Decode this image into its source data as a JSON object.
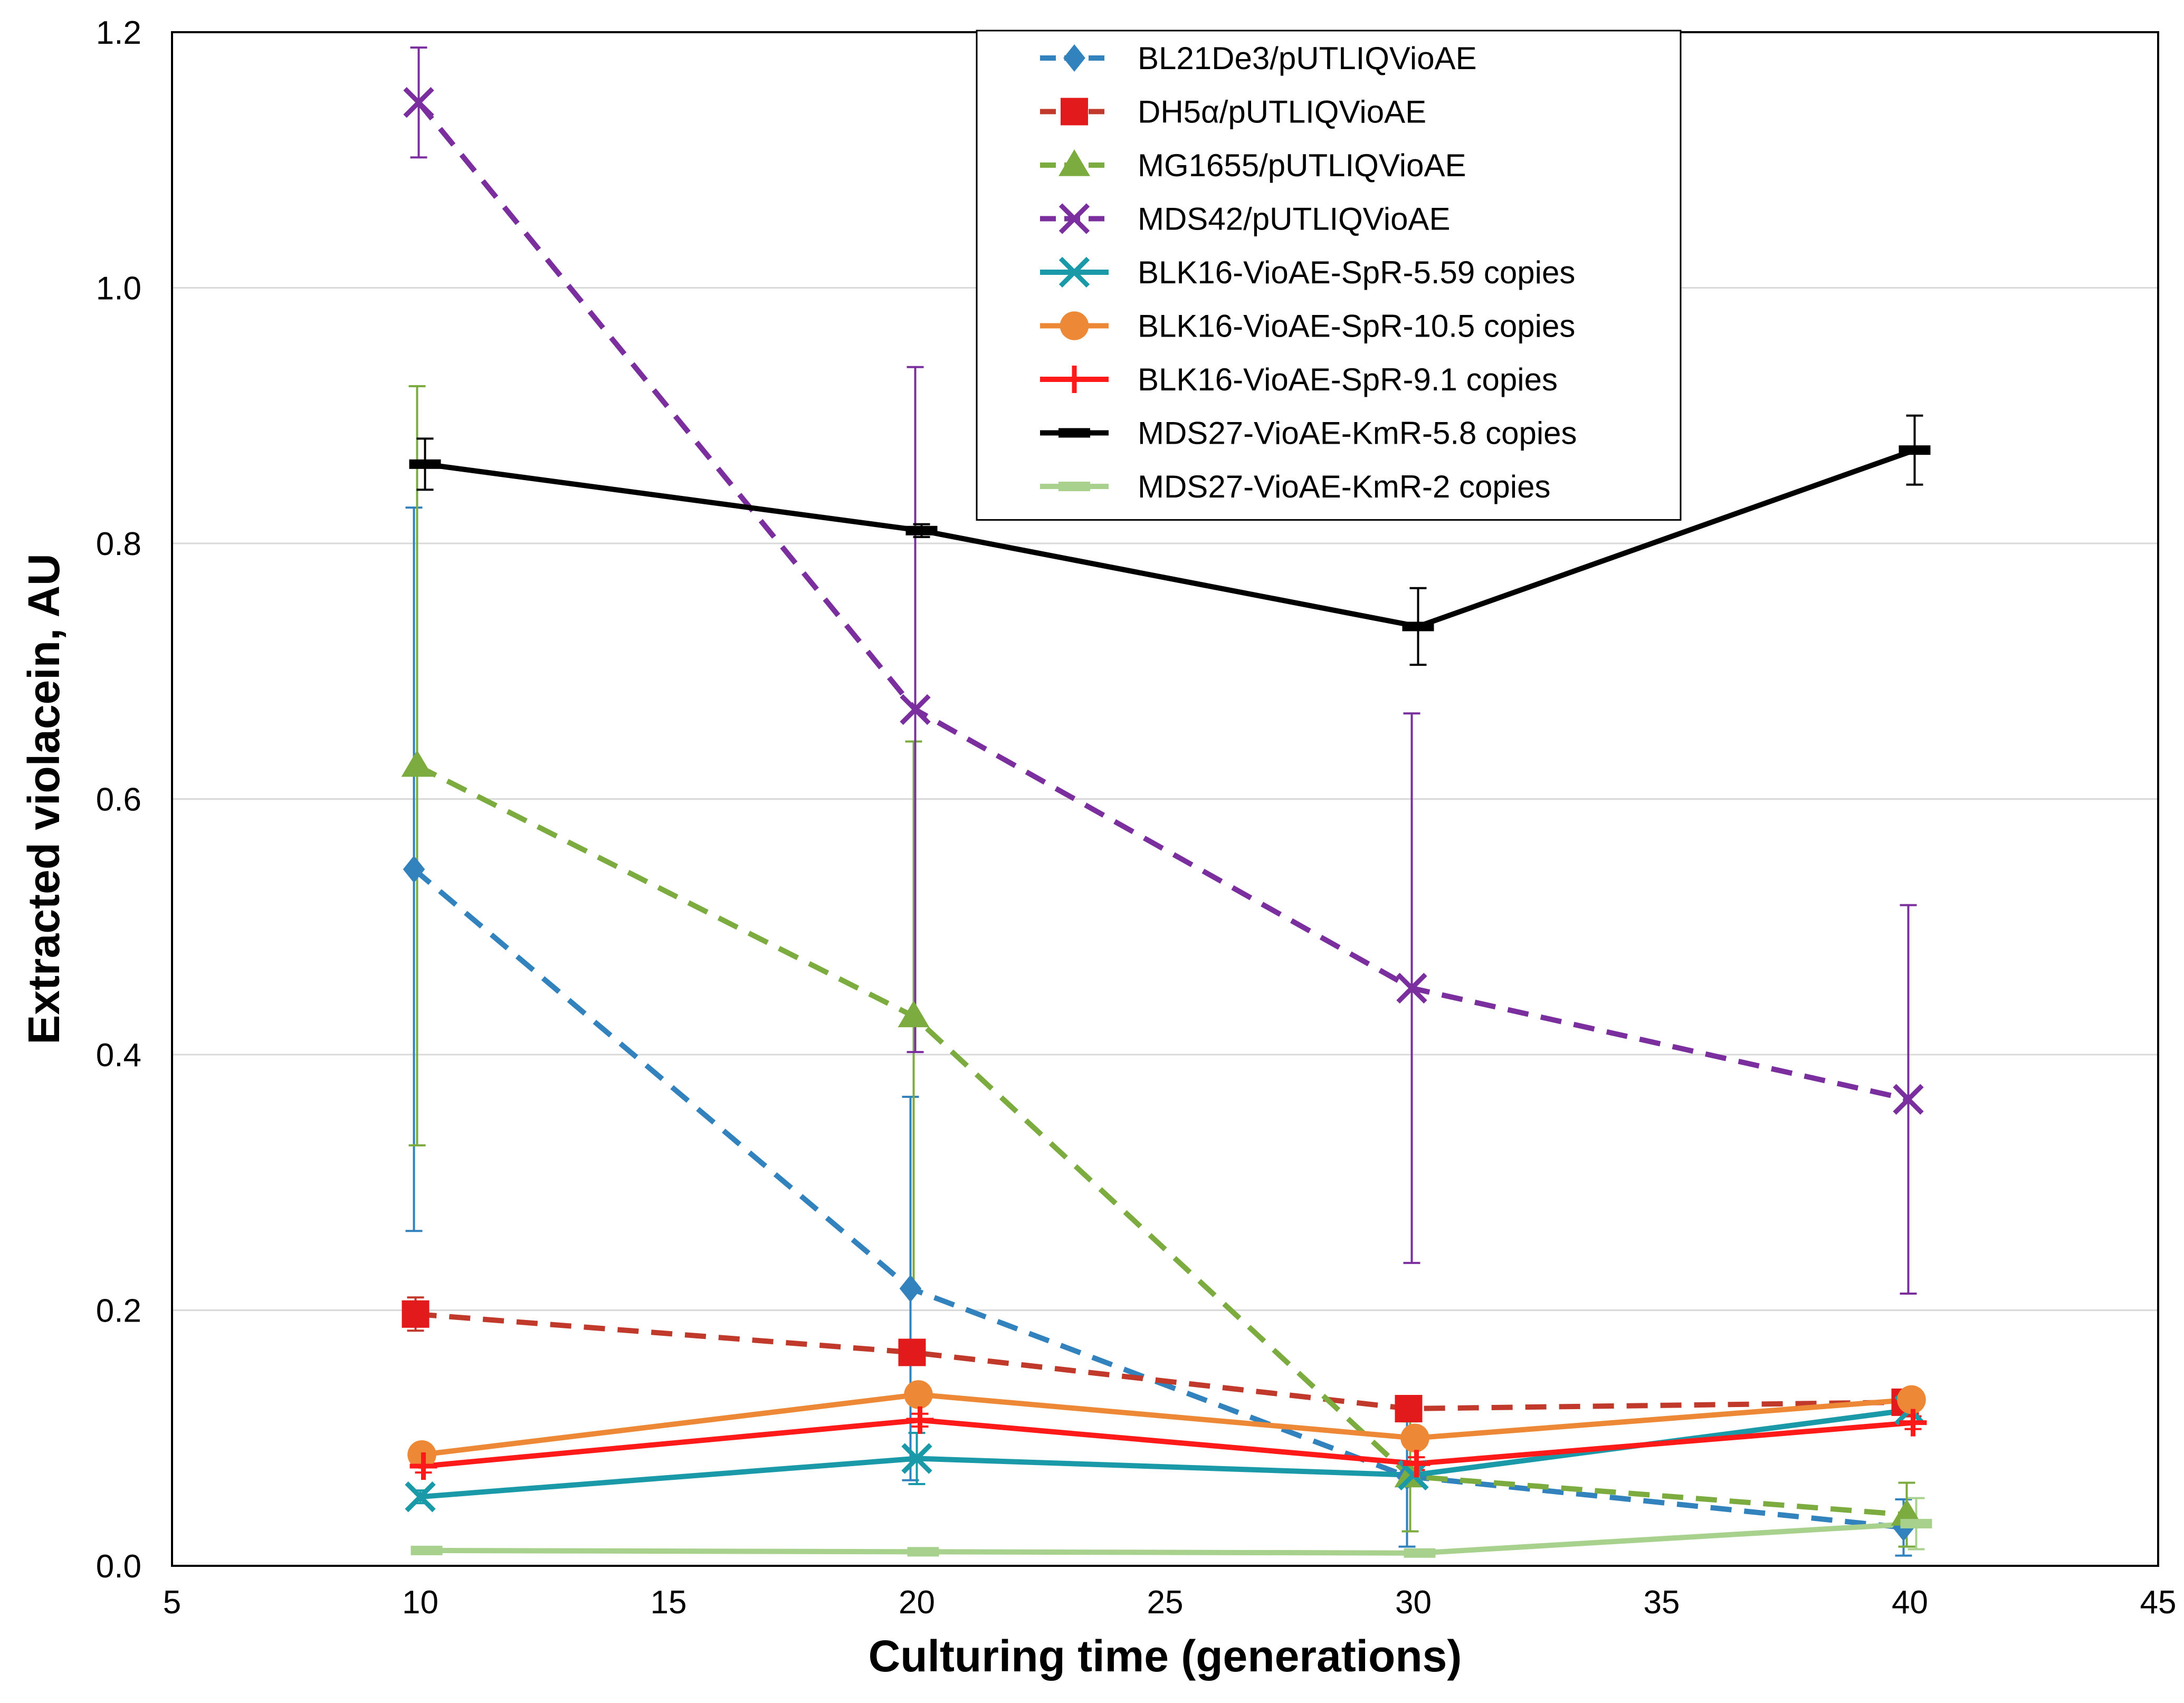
{
  "chart_data": {
    "type": "line",
    "title": "",
    "xlabel": "Culturing time (generations)",
    "ylabel": "Extracted violacein, AU",
    "xlim": [
      5,
      45
    ],
    "ylim": [
      0,
      1.2
    ],
    "xticks": [
      5,
      10,
      15,
      20,
      25,
      30,
      35,
      40,
      45
    ],
    "yticks": [
      0,
      0.2,
      0.4,
      0.6,
      0.8,
      1.0,
      1.2
    ],
    "xtick_labels": [
      "5",
      "10",
      "15",
      "20",
      "25",
      "30",
      "35",
      "40",
      "45"
    ],
    "ytick_labels": [
      "0.0",
      "0.2",
      "0.4",
      "0.6",
      "0.8",
      "1.0",
      "1.2"
    ],
    "grid": "horizontal",
    "legend_position": "top-center",
    "series": [
      {
        "name": "BL21De3/pUTLIQVioAE",
        "color": "#3182BD",
        "dash": true,
        "marker": "diamond",
        "x": [
          10,
          20,
          30,
          40
        ],
        "y": [
          0.545,
          0.217,
          0.07,
          0.03
        ],
        "err": [
          0.283,
          0.15,
          0.055,
          0.022
        ]
      },
      {
        "name": "DH5α/pUTLIQVioAE",
        "color": "#C0392B",
        "marker_color": "#E31A1C",
        "dash": true,
        "marker": "square",
        "x": [
          10,
          20,
          30,
          40
        ],
        "y": [
          0.197,
          0.167,
          0.123,
          0.128
        ],
        "err": [
          0.013,
          0.005,
          0.005,
          0.005
        ]
      },
      {
        "name": "MG1655/pUTLIQVioAE",
        "color": "#7CAC3F",
        "dash": true,
        "marker": "triangle",
        "x": [
          10,
          20,
          30,
          40
        ],
        "y": [
          0.626,
          0.43,
          0.07,
          0.04
        ],
        "err": [
          0.297,
          0.215,
          0.043,
          0.025
        ]
      },
      {
        "name": "MDS42/pUTLIQVioAE",
        "color": "#7B2F9E",
        "dash": true,
        "marker": "x",
        "x": [
          10,
          20,
          30,
          40
        ],
        "y": [
          1.145,
          0.67,
          0.452,
          0.365
        ],
        "err": [
          0.043,
          0.268,
          0.215,
          0.152
        ]
      },
      {
        "name": "BLK16-VioAE-SpR-5.59 copies",
        "color": "#1A9AA8",
        "dash": false,
        "marker": "x",
        "x": [
          10,
          20,
          30,
          40
        ],
        "y": [
          0.054,
          0.084,
          0.071,
          0.122
        ],
        "err": [
          0.005,
          0.02,
          0.005,
          0.005
        ]
      },
      {
        "name": "BLK16-VioAE-SpR-10.5 copies",
        "color": "#ED8936",
        "dash": false,
        "marker": "circle",
        "x": [
          10,
          20,
          30,
          40
        ],
        "y": [
          0.087,
          0.134,
          0.1,
          0.13
        ],
        "err": [
          0.005,
          0.005,
          0.005,
          0.005
        ]
      },
      {
        "name": "BLK16-VioAE-SpR-9.1 copies",
        "color": "#FF1A1A",
        "dash": false,
        "marker": "plus",
        "x": [
          10,
          20,
          30,
          40
        ],
        "y": [
          0.078,
          0.114,
          0.08,
          0.112
        ],
        "err": [
          0.005,
          0.005,
          0.005,
          0.005
        ]
      },
      {
        "name": "MDS27-VioAE-KmR-5.8 copies",
        "color": "#000000",
        "dash": false,
        "marker": "dash",
        "x": [
          10,
          20,
          30,
          40
        ],
        "y": [
          0.862,
          0.81,
          0.735,
          0.873
        ],
        "err": [
          0.02,
          0.005,
          0.03,
          0.027
        ]
      },
      {
        "name": "MDS27-VioAE-KmR-2 copies",
        "color": "#A9D18E",
        "dash": false,
        "marker": "dash",
        "x": [
          10,
          20,
          30,
          40
        ],
        "y": [
          0.012,
          0.011,
          0.01,
          0.033
        ],
        "err": [
          0.002,
          0.002,
          0.002,
          0.02
        ]
      }
    ]
  }
}
